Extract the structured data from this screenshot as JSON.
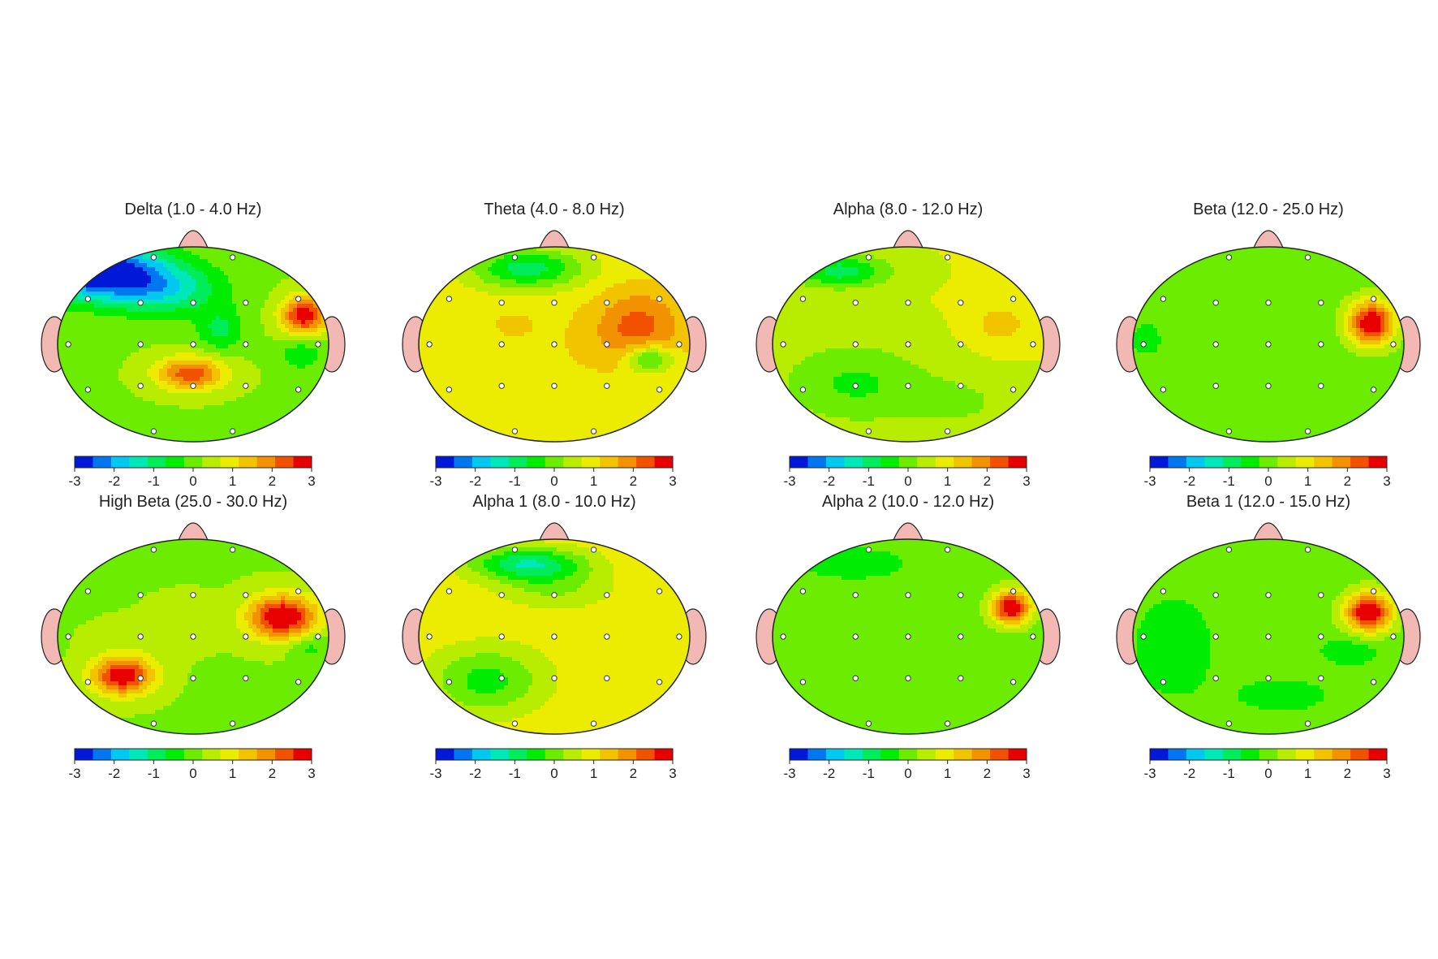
{
  "colorbar": {
    "ticks": [
      "-3",
      "-2",
      "-1",
      "0",
      "1",
      "2",
      "3"
    ],
    "colors": [
      "#0018d8",
      "#0076f0",
      "#00c8f0",
      "#00e8b8",
      "#00ec5a",
      "#00ec00",
      "#6cec00",
      "#b8ec00",
      "#ecec00",
      "#f2c400",
      "#f29200",
      "#f25200",
      "#e80000"
    ]
  },
  "head_colors": {
    "ear": "#f2b8b4",
    "outline": "#222222",
    "electrode_fill": "#ffffff"
  },
  "chart_data": [
    {
      "type": "heatmap",
      "title": "Delta (1.0 - 4.0 Hz)",
      "base": 0.2,
      "blobs": [
        {
          "x": -0.7,
          "y": 0.75,
          "sx": 0.35,
          "sy": 0.2,
          "v": -3.2
        },
        {
          "x": -0.2,
          "y": 0.55,
          "sx": 0.3,
          "sy": 0.18,
          "v": -1.2
        },
        {
          "x": 0.2,
          "y": 0.15,
          "sx": 0.12,
          "sy": 0.15,
          "v": -0.8
        },
        {
          "x": 0.82,
          "y": 0.3,
          "sx": 0.12,
          "sy": 0.14,
          "v": 2.9
        },
        {
          "x": -0.02,
          "y": -0.3,
          "sx": 0.18,
          "sy": 0.12,
          "v": 2.4
        },
        {
          "x": 0.8,
          "y": -0.1,
          "sx": 0.12,
          "sy": 0.12,
          "v": -0.6
        }
      ]
    },
    {
      "type": "heatmap",
      "title": "Theta (4.0 - 8.0 Hz)",
      "base": 1.0,
      "blobs": [
        {
          "x": 0.62,
          "y": 0.2,
          "sx": 0.22,
          "sy": 0.25,
          "v": 2.2
        },
        {
          "x": -0.32,
          "y": 0.18,
          "sx": 0.12,
          "sy": 0.1,
          "v": 1.6
        },
        {
          "x": 0.2,
          "y": 0.0,
          "sx": 0.5,
          "sy": 0.22,
          "v": 1.2
        },
        {
          "x": -0.45,
          "y": 0.0,
          "sx": 0.3,
          "sy": 0.25,
          "v": 0.6
        },
        {
          "x": -0.2,
          "y": 0.78,
          "sx": 0.3,
          "sy": 0.15,
          "v": -0.9
        },
        {
          "x": 0.7,
          "y": -0.15,
          "sx": 0.12,
          "sy": 0.1,
          "v": -0.7
        }
      ]
    },
    {
      "type": "heatmap",
      "title": "Alpha (8.0 - 12.0 Hz)",
      "base": 0.7,
      "blobs": [
        {
          "x": 0.68,
          "y": 0.2,
          "sx": 0.15,
          "sy": 0.15,
          "v": 1.4
        },
        {
          "x": -0.5,
          "y": 0.75,
          "sx": 0.25,
          "sy": 0.12,
          "v": -0.9
        },
        {
          "x": -0.4,
          "y": -0.4,
          "sx": 0.4,
          "sy": 0.3,
          "v": -0.3
        },
        {
          "x": 0.4,
          "y": -0.6,
          "sx": 0.3,
          "sy": 0.2,
          "v": 0.2
        }
      ]
    },
    {
      "type": "heatmap",
      "title": "Beta (12.0 - 25.0 Hz)",
      "base": 0.0,
      "blobs": [
        {
          "x": 0.76,
          "y": 0.22,
          "sx": 0.12,
          "sy": 0.16,
          "v": 3.1
        },
        {
          "x": -0.9,
          "y": 0.05,
          "sx": 0.08,
          "sy": 0.12,
          "v": -0.5
        }
      ]
    },
    {
      "type": "heatmap",
      "title": "High Beta (25.0 - 30.0 Hz)",
      "base": 0.2,
      "blobs": [
        {
          "x": 0.66,
          "y": 0.2,
          "sx": 0.18,
          "sy": 0.16,
          "v": 3.2
        },
        {
          "x": -0.52,
          "y": -0.4,
          "sx": 0.16,
          "sy": 0.14,
          "v": 3.0
        },
        {
          "x": -0.05,
          "y": 0.3,
          "sx": 0.15,
          "sy": 0.1,
          "v": 0.6
        },
        {
          "x": -0.3,
          "y": 0.0,
          "sx": 0.3,
          "sy": 0.15,
          "v": 0.4
        },
        {
          "x": 0.85,
          "y": -0.1,
          "sx": 0.1,
          "sy": 0.1,
          "v": -0.5
        }
      ]
    },
    {
      "type": "heatmap",
      "title": "Alpha 1 (8.0 - 10.0 Hz)",
      "base": 1.0,
      "blobs": [
        {
          "x": 0.5,
          "y": -0.05,
          "sx": 0.3,
          "sy": 0.22,
          "v": 0.8
        },
        {
          "x": -0.2,
          "y": 0.75,
          "sx": 0.3,
          "sy": 0.12,
          "v": -1.1
        },
        {
          "x": -0.5,
          "y": -0.45,
          "sx": 0.3,
          "sy": 0.25,
          "v": -0.4
        },
        {
          "x": 0.0,
          "y": 0.5,
          "sx": 0.3,
          "sy": 0.15,
          "v": 0.2
        }
      ]
    },
    {
      "type": "heatmap",
      "title": "Alpha 2 (10.0 - 12.0 Hz)",
      "base": 0.0,
      "blobs": [
        {
          "x": 0.76,
          "y": 0.3,
          "sx": 0.1,
          "sy": 0.12,
          "v": 3.2
        },
        {
          "x": -0.4,
          "y": 0.75,
          "sx": 0.3,
          "sy": 0.12,
          "v": -0.5
        }
      ]
    },
    {
      "type": "heatmap",
      "title": "Beta 1 (12.0 - 15.0 Hz)",
      "base": 0.0,
      "blobs": [
        {
          "x": 0.74,
          "y": 0.25,
          "sx": 0.12,
          "sy": 0.14,
          "v": 3.2
        },
        {
          "x": -0.7,
          "y": -0.1,
          "sx": 0.2,
          "sy": 0.35,
          "v": -0.6
        },
        {
          "x": 0.6,
          "y": -0.15,
          "sx": 0.15,
          "sy": 0.1,
          "v": -0.6
        },
        {
          "x": 0.1,
          "y": -0.6,
          "sx": 0.3,
          "sy": 0.15,
          "v": -0.4
        }
      ]
    }
  ]
}
